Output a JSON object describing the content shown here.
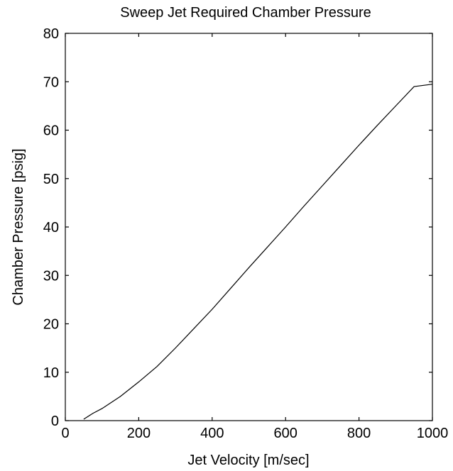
{
  "chart_data": {
    "type": "line",
    "title": "Sweep Jet Required Chamber Pressure",
    "xlabel": "Jet Velocity [m/sec]",
    "ylabel": "Chamber Pressure [psig]",
    "xlim": [
      0,
      1000
    ],
    "ylim": [
      0,
      80
    ],
    "xticks": [
      0,
      200,
      400,
      600,
      800,
      1000
    ],
    "yticks": [
      0,
      10,
      20,
      30,
      40,
      50,
      60,
      70,
      80
    ],
    "xtick_labels": [
      "0",
      "200",
      "400",
      "600",
      "800",
      "1000"
    ],
    "ytick_labels": [
      "0",
      "10",
      "20",
      "30",
      "40",
      "50",
      "60",
      "70",
      "80"
    ],
    "grid": false,
    "legend": "none",
    "line_color": "#000000",
    "series": [
      {
        "x": [
          50,
          75,
          100,
          150,
          200,
          250,
          300,
          350,
          400,
          450,
          500,
          550,
          600,
          650,
          700,
          750,
          800,
          850,
          900,
          950,
          1000
        ],
        "values": [
          0.3,
          1.5,
          2.5,
          5.0,
          8.0,
          11.2,
          15.0,
          19.0,
          23.0,
          27.3,
          31.6,
          35.8,
          40.0,
          44.3,
          48.5,
          52.7,
          56.9,
          61.0,
          65.0,
          69.0,
          69.5
        ]
      }
    ]
  }
}
